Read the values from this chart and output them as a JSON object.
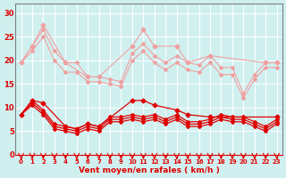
{
  "x": [
    0,
    1,
    2,
    3,
    4,
    5,
    6,
    7,
    8,
    9,
    10,
    11,
    12,
    13,
    14,
    15,
    16,
    17,
    18,
    19,
    20,
    21,
    22,
    23
  ],
  "line1": [
    19.5,
    23.0,
    27.5,
    null,
    19.5,
    null,
    16.5,
    16.5,
    null,
    null,
    23.0,
    26.5,
    23.0,
    null,
    23.0,
    19.5,
    null,
    21.0,
    null,
    null,
    null,
    null,
    19.5,
    19.5
  ],
  "line2": [
    19.5,
    23.0,
    26.5,
    22.0,
    19.5,
    19.5,
    16.5,
    16.5,
    16.0,
    15.5,
    21.5,
    23.5,
    21.0,
    19.5,
    21.0,
    19.5,
    19.0,
    21.0,
    18.5,
    18.5,
    13.0,
    17.0,
    19.5,
    19.5
  ],
  "line3": [
    19.5,
    22.0,
    25.0,
    20.0,
    17.5,
    17.5,
    15.5,
    15.5,
    15.0,
    14.5,
    20.0,
    22.0,
    19.5,
    18.0,
    19.5,
    18.0,
    17.5,
    19.5,
    17.0,
    17.0,
    12.0,
    16.0,
    18.5,
    18.5
  ],
  "line4": [
    8.5,
    11.5,
    11.0,
    null,
    6.0,
    5.5,
    6.5,
    6.0,
    null,
    null,
    11.5,
    11.5,
    10.5,
    null,
    9.5,
    8.5,
    null,
    8.0,
    null,
    null,
    null,
    null,
    null,
    8.0
  ],
  "line5": [
    8.5,
    11.5,
    9.5,
    6.5,
    6.0,
    5.5,
    6.5,
    6.0,
    8.0,
    8.0,
    8.5,
    8.0,
    8.5,
    7.5,
    8.5,
    7.0,
    7.0,
    7.5,
    8.5,
    8.0,
    8.0,
    7.0,
    6.0,
    7.5
  ],
  "line6": [
    8.5,
    11.0,
    9.0,
    6.0,
    5.5,
    5.0,
    6.0,
    5.5,
    7.5,
    7.5,
    8.0,
    7.5,
    8.0,
    7.0,
    8.0,
    6.5,
    6.5,
    7.0,
    8.0,
    7.5,
    7.5,
    6.5,
    5.5,
    7.0
  ],
  "line7": [
    8.5,
    10.5,
    8.5,
    5.5,
    5.0,
    4.5,
    5.5,
    5.0,
    7.0,
    7.0,
    7.5,
    7.0,
    7.5,
    6.5,
    7.5,
    6.0,
    6.0,
    6.5,
    7.5,
    7.0,
    7.0,
    6.0,
    5.0,
    6.5
  ],
  "bg_color": "#d0f0f0",
  "color_light": "#f0a0a0",
  "color_dark": "#e00000",
  "xlabel": "Vent moyen/en rafales ( km/h )",
  "ylim": [
    0,
    32
  ],
  "yticks": [
    0,
    5,
    10,
    15,
    20,
    25,
    30
  ],
  "xticks": [
    0,
    1,
    2,
    3,
    4,
    5,
    6,
    7,
    8,
    9,
    10,
    11,
    12,
    13,
    14,
    15,
    16,
    17,
    18,
    19,
    20,
    21,
    22,
    23
  ]
}
